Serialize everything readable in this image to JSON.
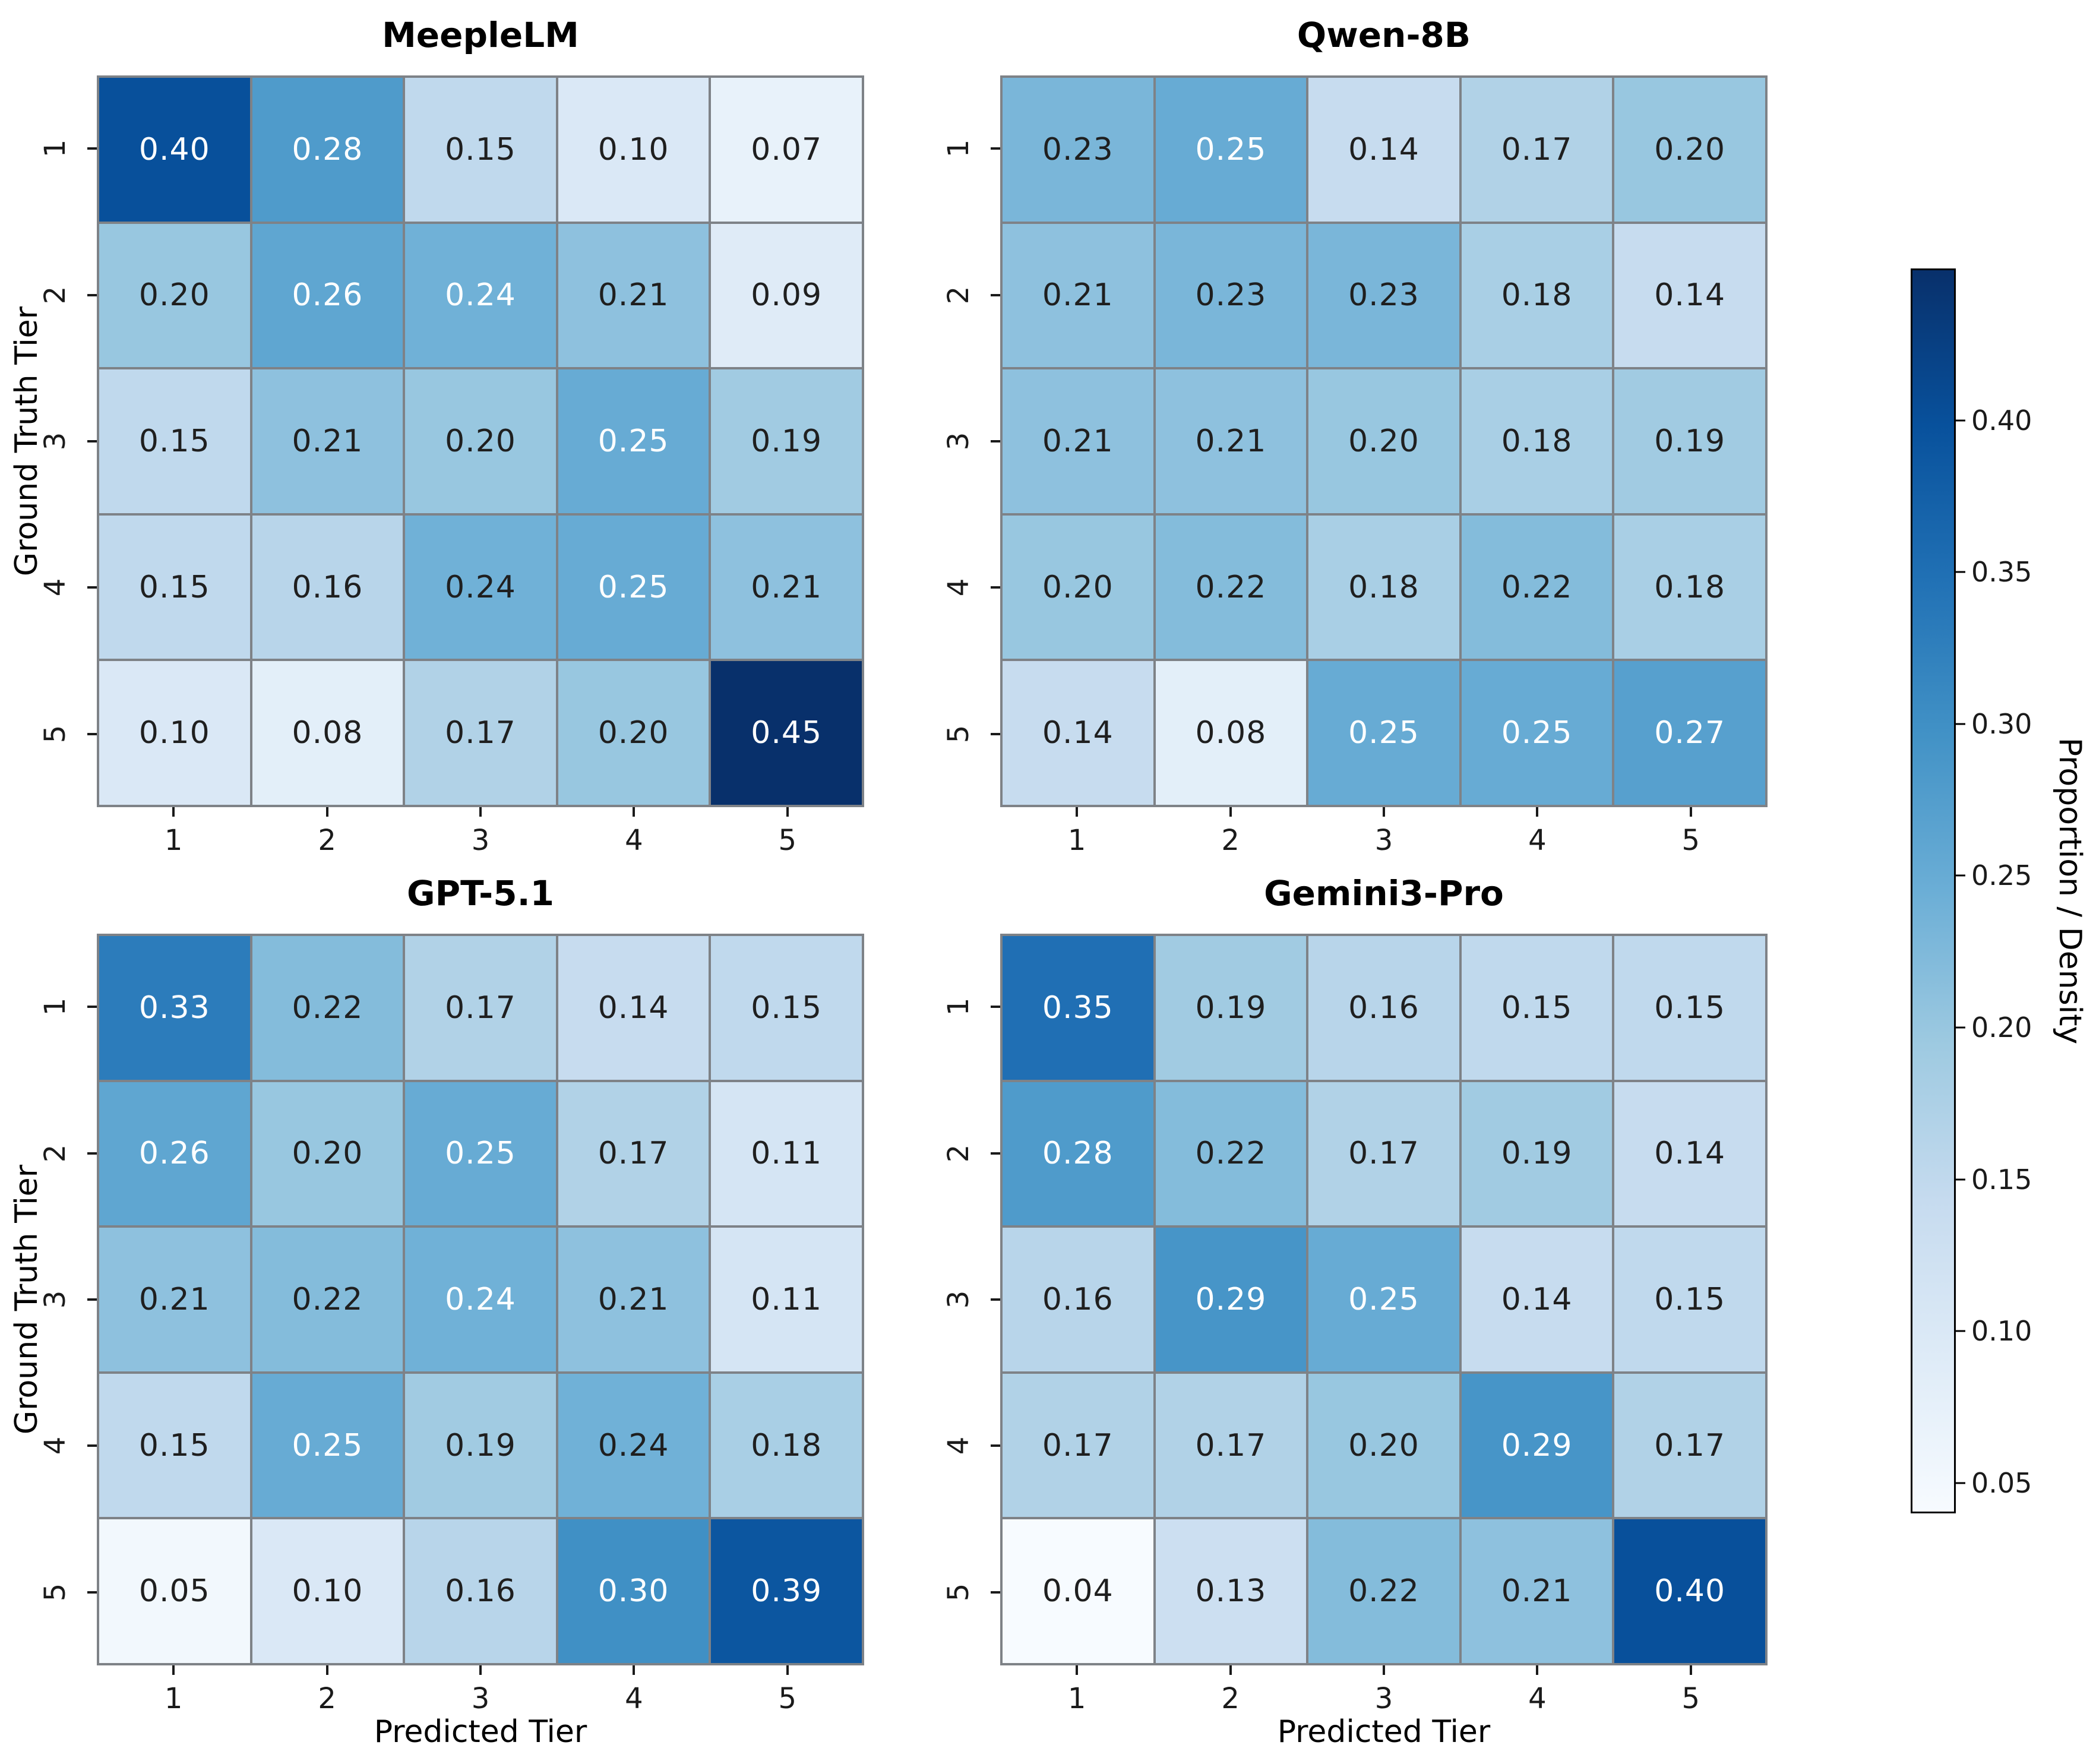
{
  "axes": {
    "xlabel": "Predicted Tier",
    "ylabel": "Ground Truth Tier",
    "x_ticks": [
      "1",
      "2",
      "3",
      "4",
      "5"
    ],
    "y_ticks": [
      "1",
      "2",
      "3",
      "4",
      "5"
    ]
  },
  "chart_data": [
    {
      "type": "heatmap",
      "title": "MeepleLM",
      "x_ticks": [
        "1",
        "2",
        "3",
        "4",
        "5"
      ],
      "y_ticks": [
        "1",
        "2",
        "3",
        "4",
        "5"
      ],
      "values": [
        [
          0.4,
          0.28,
          0.15,
          0.1,
          0.07
        ],
        [
          0.2,
          0.26,
          0.24,
          0.21,
          0.09
        ],
        [
          0.15,
          0.21,
          0.2,
          0.25,
          0.19
        ],
        [
          0.15,
          0.16,
          0.24,
          0.25,
          0.21
        ],
        [
          0.1,
          0.08,
          0.17,
          0.2,
          0.45
        ]
      ],
      "white_cells": [
        [
          0,
          0
        ],
        [
          0,
          1
        ],
        [
          1,
          1
        ],
        [
          1,
          2
        ],
        [
          2,
          3
        ],
        [
          3,
          3
        ],
        [
          4,
          4
        ]
      ]
    },
    {
      "type": "heatmap",
      "title": "Qwen-8B",
      "x_ticks": [
        "1",
        "2",
        "3",
        "4",
        "5"
      ],
      "y_ticks": [
        "1",
        "2",
        "3",
        "4",
        "5"
      ],
      "values": [
        [
          0.23,
          0.25,
          0.14,
          0.17,
          0.2
        ],
        [
          0.21,
          0.23,
          0.23,
          0.18,
          0.14
        ],
        [
          0.21,
          0.21,
          0.2,
          0.18,
          0.19
        ],
        [
          0.2,
          0.22,
          0.18,
          0.22,
          0.18
        ],
        [
          0.14,
          0.08,
          0.25,
          0.25,
          0.27
        ]
      ],
      "white_cells": [
        [
          0,
          1
        ],
        [
          4,
          2
        ],
        [
          4,
          3
        ],
        [
          4,
          4
        ]
      ]
    },
    {
      "type": "heatmap",
      "title": "GPT-5.1",
      "x_ticks": [
        "1",
        "2",
        "3",
        "4",
        "5"
      ],
      "y_ticks": [
        "1",
        "2",
        "3",
        "4",
        "5"
      ],
      "values": [
        [
          0.33,
          0.22,
          0.17,
          0.14,
          0.15
        ],
        [
          0.26,
          0.2,
          0.25,
          0.17,
          0.11
        ],
        [
          0.21,
          0.22,
          0.24,
          0.21,
          0.11
        ],
        [
          0.15,
          0.25,
          0.19,
          0.24,
          0.18
        ],
        [
          0.05,
          0.1,
          0.16,
          0.3,
          0.39
        ]
      ],
      "white_cells": [
        [
          0,
          0
        ],
        [
          1,
          0
        ],
        [
          1,
          2
        ],
        [
          2,
          2
        ],
        [
          3,
          1
        ],
        [
          4,
          3
        ],
        [
          4,
          4
        ]
      ]
    },
    {
      "type": "heatmap",
      "title": "Gemini3-Pro",
      "x_ticks": [
        "1",
        "2",
        "3",
        "4",
        "5"
      ],
      "y_ticks": [
        "1",
        "2",
        "3",
        "4",
        "5"
      ],
      "values": [
        [
          0.35,
          0.19,
          0.16,
          0.15,
          0.15
        ],
        [
          0.28,
          0.22,
          0.17,
          0.19,
          0.14
        ],
        [
          0.16,
          0.29,
          0.25,
          0.14,
          0.15
        ],
        [
          0.17,
          0.17,
          0.2,
          0.29,
          0.17
        ],
        [
          0.04,
          0.13,
          0.22,
          0.21,
          0.4
        ]
      ],
      "white_cells": [
        [
          0,
          0
        ],
        [
          1,
          0
        ],
        [
          2,
          1
        ],
        [
          2,
          2
        ],
        [
          3,
          3
        ],
        [
          4,
          4
        ]
      ]
    }
  ],
  "colorbar": {
    "label": "Proportion / Density",
    "ticks": [
      "0.40",
      "0.35",
      "0.30",
      "0.25",
      "0.20",
      "0.15",
      "0.10",
      "0.05"
    ],
    "vmin": 0.04,
    "vmax": 0.45,
    "colormap": [
      "#f7fbff",
      "#deebf7",
      "#c6dbef",
      "#9ecae1",
      "#6baed6",
      "#4292c6",
      "#2171b5",
      "#08519c",
      "#08306b"
    ]
  },
  "style": {
    "grid_color": "#7e8287",
    "annot_dark": "#1f1f1f",
    "annot_light": "#ffffff",
    "tick_color": "#1a1a1a",
    "background": "#ffffff"
  }
}
